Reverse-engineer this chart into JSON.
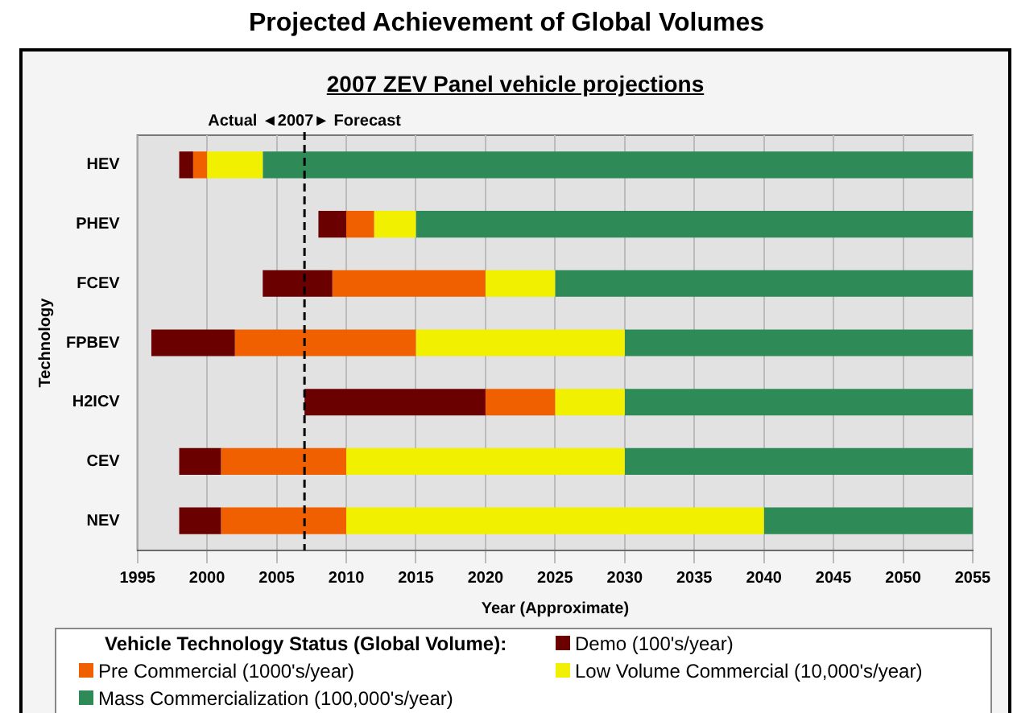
{
  "chart_data": {
    "type": "bar",
    "orientation": "horizontal",
    "title": "Projected Achievement of Global Volumes",
    "subtitle": "2007 ZEV Panel vehicle projections",
    "xlabel": "Year (Approximate)",
    "ylabel": "Technology",
    "legend_title": "Vehicle Technology Status (Global Volume):",
    "categories": [
      "HEV",
      "PHEV",
      "FCEV",
      "FPBEV",
      "H2ICV",
      "CEV",
      "NEV"
    ],
    "series": [
      {
        "name": "Demo (100's/year)",
        "color": "#6b0000",
        "base": [
          1998,
          2008,
          2004,
          1996,
          2007,
          1998,
          1998
        ],
        "values": [
          1,
          2,
          5,
          6,
          13,
          3,
          3
        ]
      },
      {
        "name": "Pre Commercial (1000's/year)",
        "color": "#f06000",
        "base": [
          1999,
          2010,
          2009,
          2002,
          2020,
          2001,
          2001
        ],
        "values": [
          1,
          2,
          11,
          13,
          5,
          9,
          9
        ]
      },
      {
        "name": "Low Volume Commercial (10,000's/year)",
        "color": "#f0f000",
        "base": [
          2000,
          2012,
          2020,
          2015,
          2025,
          2010,
          2010
        ],
        "values": [
          4,
          3,
          5,
          15,
          5,
          20,
          30
        ]
      },
      {
        "name": "Mass Commercialization (100,000's/year)",
        "color": "#2e8b57",
        "base": [
          2004,
          2015,
          2025,
          2030,
          2030,
          2030,
          2040
        ],
        "values": [
          51,
          40,
          30,
          25,
          25,
          25,
          15
        ]
      }
    ],
    "xlim": [
      1995,
      2055
    ],
    "xticks": [
      1995,
      2000,
      2005,
      2010,
      2015,
      2020,
      2025,
      2030,
      2035,
      2040,
      2045,
      2050,
      2055
    ],
    "grid": "x",
    "legend": "bottom",
    "ref_lines": [
      {
        "axis": "x",
        "value": 2007,
        "label": "Actual ◄2007► Forecast",
        "line_style": "dashed",
        "color": "#000000"
      }
    ]
  }
}
